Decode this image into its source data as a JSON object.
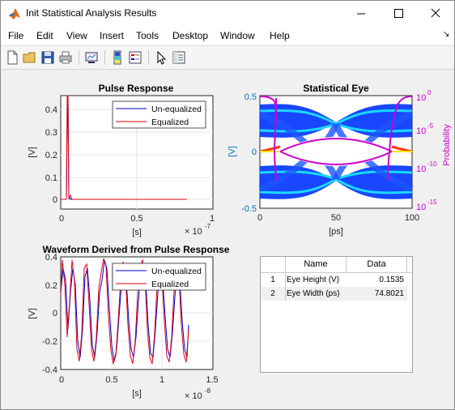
{
  "window": {
    "title": "Init Statistical Analysis Results",
    "minimize_glyph": "—",
    "maximize_glyph": "☐",
    "close_glyph": "✕"
  },
  "menu": [
    "File",
    "Edit",
    "View",
    "Insert",
    "Tools",
    "Desktop",
    "Window",
    "Help"
  ],
  "menu_arrow_glyph": "↘",
  "toolbar_icons": [
    "new-figure-icon",
    "open-file-icon",
    "save-icon",
    "print-icon",
    "link-plot-icon",
    "insert-colorbar-icon",
    "insert-legend-icon",
    "pointer-icon",
    "property-inspector-icon"
  ],
  "colors": {
    "unequalized": "#0000cc",
    "equalized": "#e0000f",
    "probability": "#cc00cc",
    "eye_axis": "#0072bd"
  },
  "plots": {
    "pulse": {
      "title": "Pulse Response",
      "xlabel": "[s]",
      "ylabel": "[V]",
      "xticks": [
        "0",
        "0.5",
        "1"
      ],
      "yticks": [
        "0.4",
        "0.3",
        "0.2",
        "0.1",
        "0"
      ],
      "exponent": "× 10",
      "exponent_power": "-7",
      "legend": [
        "Un-equalized",
        "Equalized"
      ]
    },
    "eye": {
      "title": "Statistical Eye",
      "xlabel": "[ps]",
      "ylabel": "[V]",
      "ylabel_right": "Probability",
      "xticks": [
        "0",
        "50",
        "100"
      ],
      "yticks": [
        "0.5",
        "0",
        "-0.5"
      ],
      "yticks_right_base": [
        "10",
        "10",
        "10",
        "10"
      ],
      "yticks_right_exp": [
        "0",
        "-5",
        "-10",
        "-15"
      ]
    },
    "wave": {
      "title": "Waveform Derived from Pulse Response",
      "xlabel": "[s]",
      "ylabel": "[V]",
      "xticks": [
        "0",
        "0.5",
        "1",
        "1.5"
      ],
      "yticks": [
        "0.4",
        "0.2",
        "0",
        "-0.2",
        "-0.4"
      ],
      "exponent": "× 10",
      "exponent_power": "-8",
      "legend": [
        "Un-equalized",
        "Equalized"
      ]
    }
  },
  "table": {
    "columns": [
      "Name",
      "Data"
    ],
    "rows": [
      {
        "index": "1",
        "name": "Eye Height (V)",
        "value": "0.1535"
      },
      {
        "index": "2",
        "name": "Eye Width (ps)",
        "value": "74.8021"
      }
    ]
  }
}
